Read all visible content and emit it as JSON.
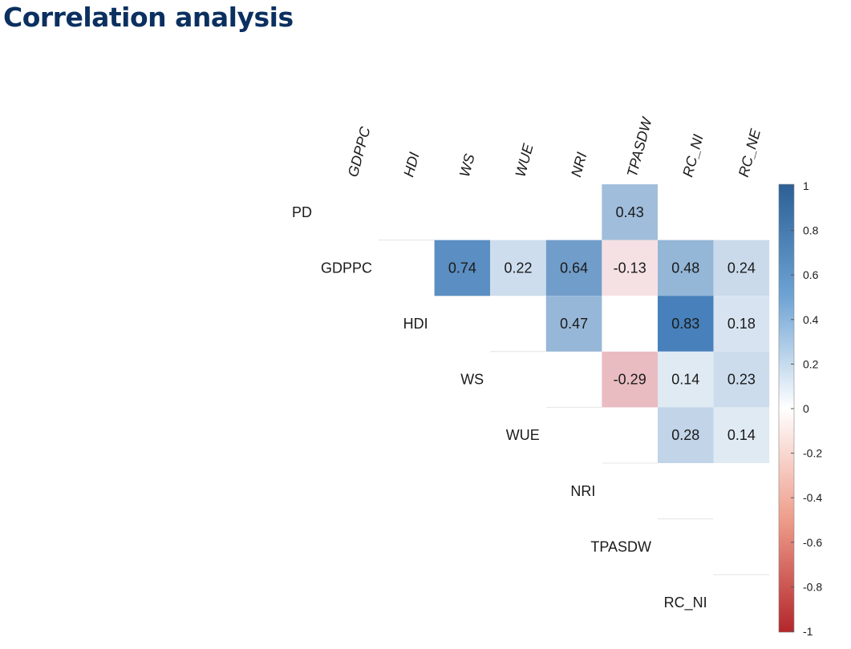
{
  "title": "Correlation analysis",
  "chart_data": {
    "type": "heatmap",
    "subtype": "correlation-matrix-upper",
    "column_labels": [
      "GDPPC",
      "HDI",
      "WS",
      "WUE",
      "NRI",
      "TPASDW",
      "RC_NI",
      "RC_NE"
    ],
    "row_labels": [
      "PD",
      "GDPPC",
      "HDI",
      "WS",
      "WUE",
      "NRI",
      "TPASDW",
      "RC_NI"
    ],
    "cells": [
      {
        "row": "PD",
        "col": "NRI",
        "value": 0.43
      },
      {
        "row": "GDPPC",
        "col": "HDI",
        "value": 0.74
      },
      {
        "row": "GDPPC",
        "col": "WS",
        "value": 0.22
      },
      {
        "row": "GDPPC",
        "col": "WUE",
        "value": 0.64
      },
      {
        "row": "GDPPC",
        "col": "NRI",
        "value": -0.13
      },
      {
        "row": "GDPPC",
        "col": "TPASDW",
        "value": 0.48
      },
      {
        "row": "GDPPC",
        "col": "RC_NI",
        "value": 0.24
      },
      {
        "row": "HDI",
        "col": "WUE",
        "value": 0.47
      },
      {
        "row": "HDI",
        "col": "TPASDW",
        "value": 0.83
      },
      {
        "row": "HDI",
        "col": "RC_NI",
        "value": 0.18
      },
      {
        "row": "WS",
        "col": "NRI",
        "value": -0.29
      },
      {
        "row": "WS",
        "col": "TPASDW",
        "value": 0.14
      },
      {
        "row": "WS",
        "col": "RC_NI",
        "value": 0.23
      },
      {
        "row": "WUE",
        "col": "TPASDW",
        "value": 0.28
      },
      {
        "row": "WUE",
        "col": "RC_NI",
        "value": 0.14
      }
    ],
    "colorbar": {
      "range": [
        -1,
        1
      ],
      "ticks": [
        "1",
        "0.8",
        "0.6",
        "0.4",
        "0.2",
        "0",
        "-0.2",
        "-0.4",
        "-0.6",
        "-0.8",
        "-1"
      ],
      "colors": {
        "positive": "#2166ac",
        "zero": "#ffffff",
        "negative": "#b2182b"
      }
    }
  }
}
